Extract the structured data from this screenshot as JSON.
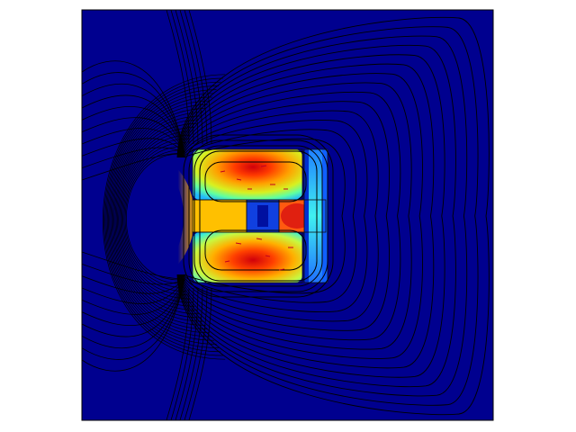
{
  "plot": {
    "background_color": "#00008f",
    "frame_color": "#000000",
    "streamline_color": "#000000",
    "arrow_color": "#c00020",
    "colormap": "jet",
    "legend": "none",
    "axes_visible": false
  }
}
